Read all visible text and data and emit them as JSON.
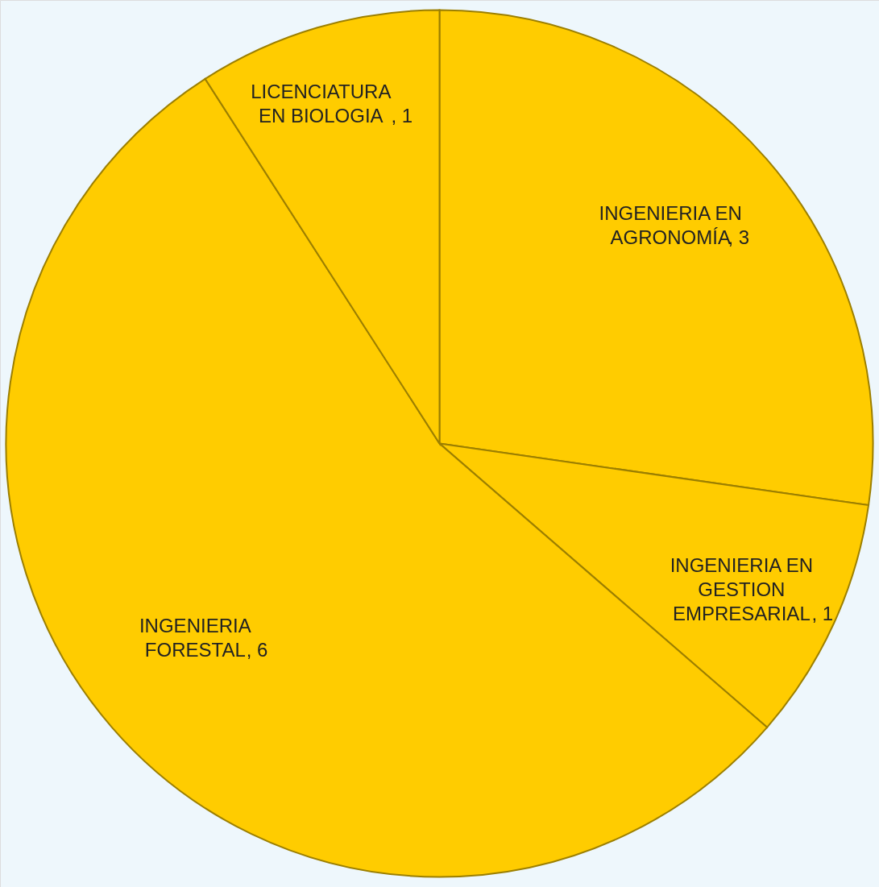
{
  "chart_data": {
    "type": "pie",
    "categories": [
      "INGENIERIA EN AGRONOMÍA",
      "INGENIERIA EN GESTION EMPRESARIAL",
      "INGENIERIA FORESTAL",
      "LICENCIATURA EN BIOLOGIA"
    ],
    "values": [
      3,
      1,
      6,
      1
    ],
    "colors": [
      "#ffcc00",
      "#ffcc00",
      "#ffcc00",
      "#ffcc00"
    ],
    "value_labels": [
      ", 3",
      ", 1",
      ", 6",
      ", 1"
    ]
  }
}
